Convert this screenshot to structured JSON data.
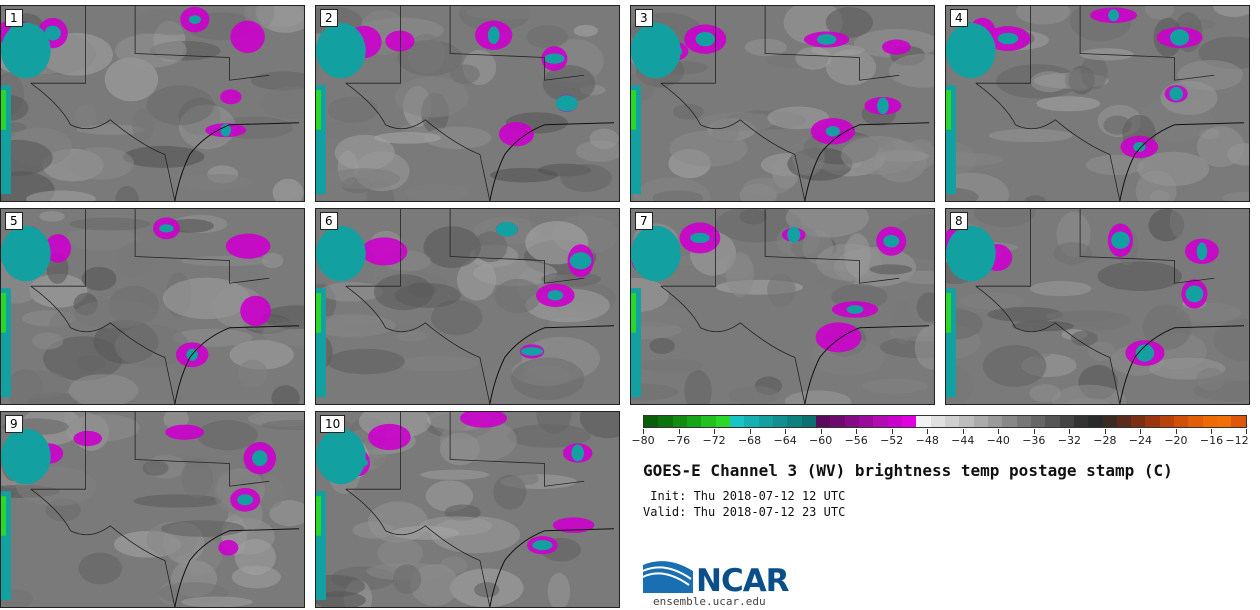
{
  "panels": [
    "1",
    "2",
    "3",
    "4",
    "5",
    "6",
    "7",
    "8",
    "9",
    "10"
  ],
  "colorbar": {
    "ticks": [
      "-80",
      "-76",
      "-72",
      "-68",
      "-64",
      "-60",
      "-56",
      "-52",
      "-48",
      "-44",
      "-40",
      "-36",
      "-32",
      "-28",
      "-24",
      "-20",
      "-16",
      "-12"
    ],
    "colors": [
      "#0a5e0a",
      "#0b730b",
      "#118c11",
      "#16a516",
      "#1fc21f",
      "#2ad82a",
      "#19c4c4",
      "#15b0b0",
      "#13a0a0",
      "#109090",
      "#0d8080",
      "#0a7070",
      "#5a0a5a",
      "#6e0a6e",
      "#850a85",
      "#9c0a9c",
      "#b30ab3",
      "#cc00cc",
      "#e000e0",
      "#f2f2f2",
      "#e0e0e0",
      "#cfcfcf",
      "#bdbdbd",
      "#ababab",
      "#9a9a9a",
      "#888888",
      "#777777",
      "#666666",
      "#555555",
      "#444444",
      "#333333",
      "#2a2a2a",
      "#3a2a20",
      "#5a2a1a",
      "#7a2e14",
      "#9a3510",
      "#b8420c",
      "#d05008",
      "#e25e06",
      "#ee6a04",
      "#f07008",
      "#e0560a"
    ]
  },
  "title": "GOES-E Channel 3 (WV) brightness temp postage stamp (C)",
  "init": " Init: Thu 2018-07-12 12 UTC",
  "valid": "Valid: Thu 2018-07-12 23 UTC",
  "logo": {
    "text": "NCAR",
    "site": "ensemble.ucar.edu"
  }
}
